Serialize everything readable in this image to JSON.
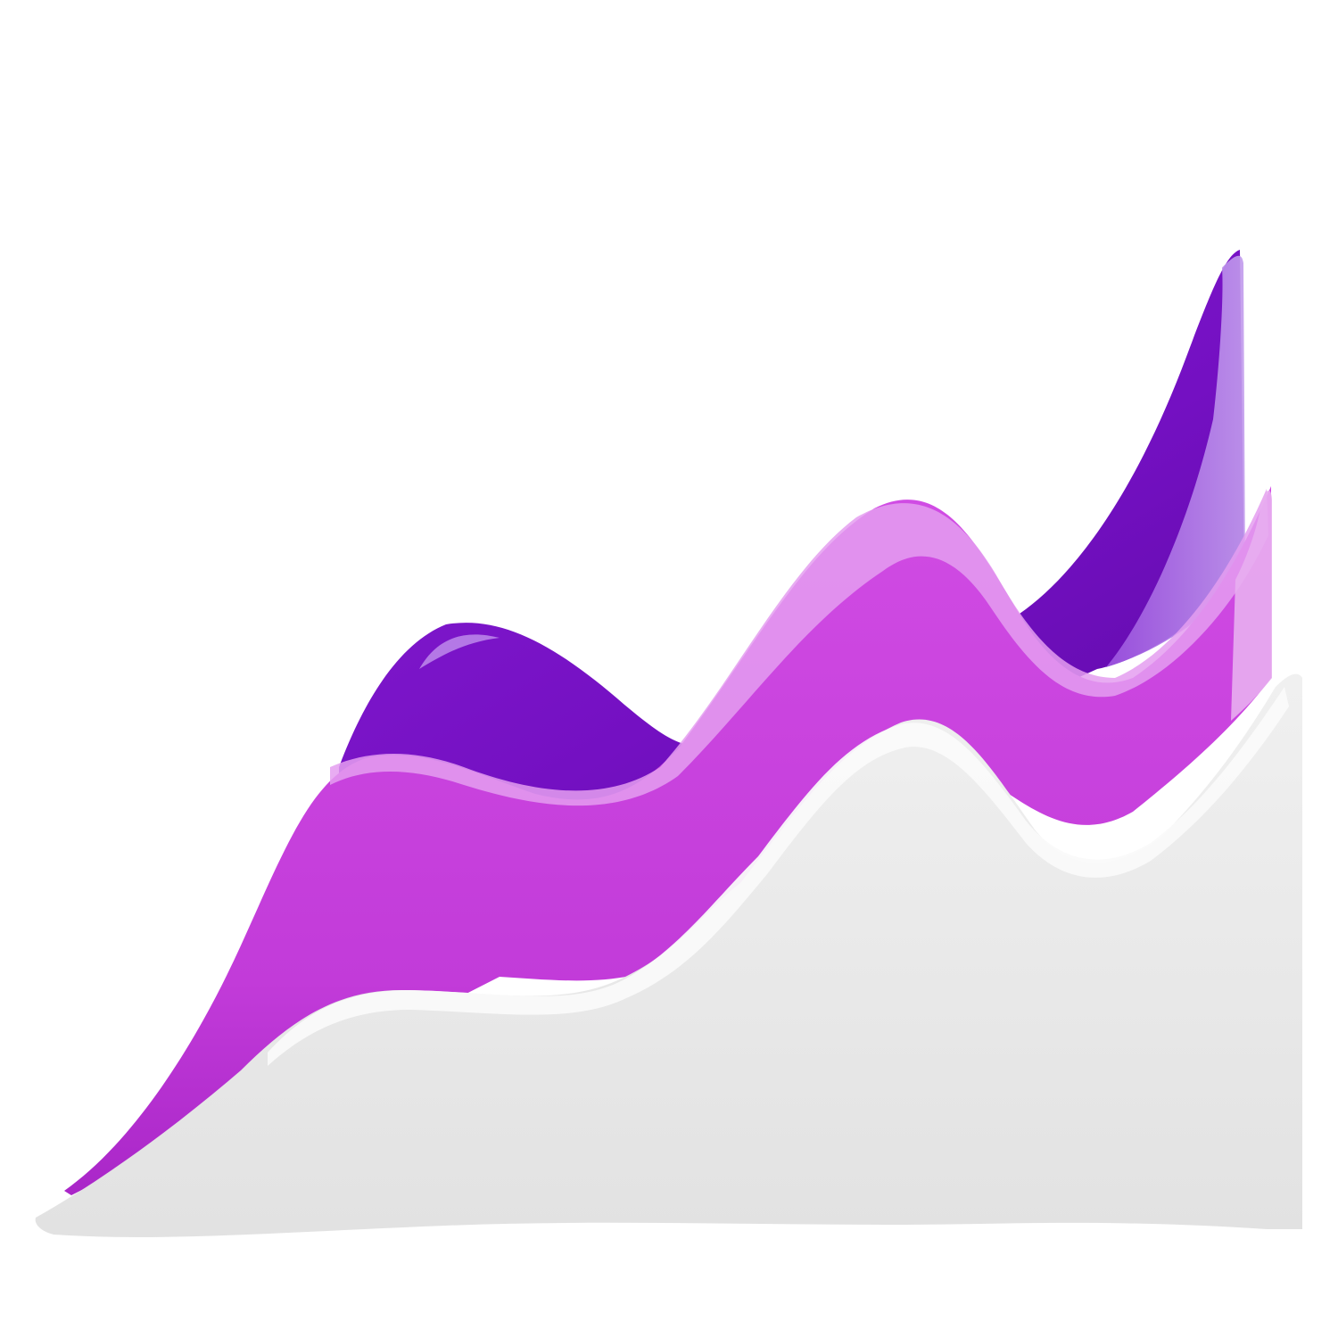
{
  "illustration": {
    "subject": "3d-wave-area-chart-icon",
    "colors": {
      "background": "#ffffff",
      "back_layer": "#7a12c8",
      "back_layer_edge": "#b184e6",
      "middle_layer": "#c743de",
      "middle_layer_edge": "#e8a6f0",
      "front_layer": "#e7e7e7",
      "front_layer_edge": "#f6f6f6"
    }
  }
}
